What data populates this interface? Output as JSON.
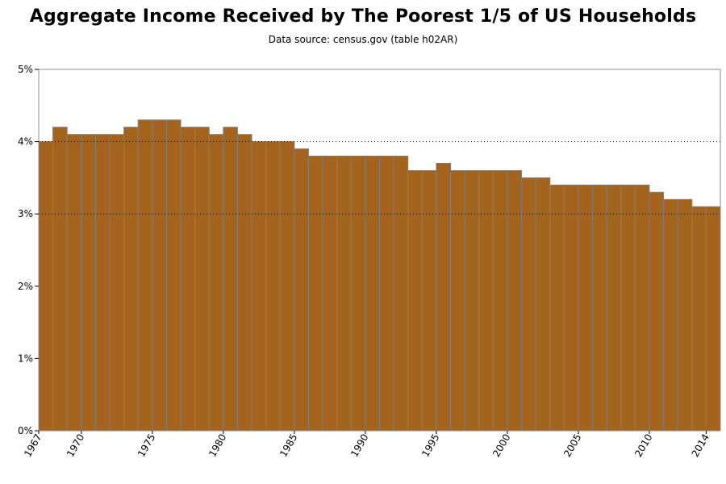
{
  "chart_data": {
    "type": "bar",
    "title": "Aggregate Income Received by The Poorest 1/5 of US Households",
    "subtitle": "Data source: census.gov (table h02AR)",
    "xlabel": "",
    "ylabel": "",
    "ylim": [
      0,
      5
    ],
    "y_ticks": [
      "0%",
      "1%",
      "2%",
      "3%",
      "4%",
      "5%"
    ],
    "x_tick_labels": [
      "1967",
      "1970",
      "1975",
      "1980",
      "1985",
      "1990",
      "1995",
      "2000",
      "2005",
      "2010",
      "2014"
    ],
    "grid": "dotted horizontal lines at 3% and 4%",
    "bar_color": "#A5641E",
    "bar_edge_color": "#7F7F7F",
    "x": [
      1967,
      1968,
      1969,
      1970,
      1971,
      1972,
      1973,
      1974,
      1975,
      1976,
      1977,
      1978,
      1979,
      1980,
      1981,
      1982,
      1983,
      1984,
      1985,
      1986,
      1987,
      1988,
      1989,
      1990,
      1991,
      1992,
      1993,
      1994,
      1995,
      1996,
      1997,
      1998,
      1999,
      2000,
      2001,
      2002,
      2003,
      2004,
      2005,
      2006,
      2007,
      2008,
      2009,
      2010,
      2011,
      2012,
      2013,
      2014
    ],
    "values": [
      4.0,
      4.2,
      4.1,
      4.1,
      4.1,
      4.1,
      4.2,
      4.3,
      4.3,
      4.3,
      4.2,
      4.2,
      4.1,
      4.2,
      4.1,
      4.0,
      4.0,
      4.0,
      3.9,
      3.8,
      3.8,
      3.8,
      3.8,
      3.8,
      3.8,
      3.8,
      3.6,
      3.6,
      3.7,
      3.6,
      3.6,
      3.6,
      3.6,
      3.6,
      3.5,
      3.5,
      3.4,
      3.4,
      3.4,
      3.4,
      3.4,
      3.4,
      3.4,
      3.3,
      3.2,
      3.2,
      3.1,
      3.1
    ]
  }
}
